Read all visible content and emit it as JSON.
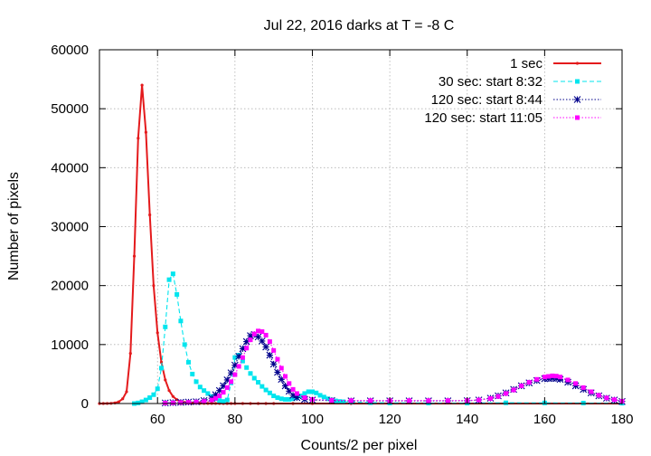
{
  "chart_data": {
    "type": "line",
    "title": "Jul 22, 2016 darks at T = -8 C",
    "xlabel": "Counts/2 per pixel",
    "ylabel": "Number of pixels",
    "xlim": [
      45,
      180
    ],
    "ylim": [
      0,
      60000
    ],
    "xticks": [
      60,
      80,
      100,
      120,
      140,
      160,
      180
    ],
    "yticks": [
      0,
      10000,
      20000,
      30000,
      40000,
      50000,
      60000
    ],
    "grid": true,
    "legend_position": "top-right",
    "series": [
      {
        "name": "1 sec",
        "color": "#e41a1c",
        "marker": "dot",
        "dash": "solid",
        "x": [
          45,
          46,
          47,
          48,
          49,
          50,
          51,
          52,
          53,
          54,
          55,
          56,
          57,
          58,
          59,
          60,
          61,
          62,
          63,
          64,
          65,
          66,
          67,
          68,
          69,
          70,
          71,
          72,
          73,
          74,
          75,
          76,
          77,
          78,
          79,
          80,
          82,
          84,
          86,
          88,
          90,
          95,
          100,
          110,
          120,
          130,
          140,
          150,
          160,
          170,
          180
        ],
        "y": [
          0,
          0,
          10,
          30,
          100,
          300,
          800,
          2000,
          8500,
          25000,
          45000,
          54000,
          46000,
          32000,
          20000,
          12000,
          7000,
          4000,
          2200,
          1200,
          650,
          350,
          200,
          120,
          80,
          50,
          35,
          25,
          20,
          15,
          12,
          10,
          8,
          6,
          5,
          4,
          3,
          2,
          2,
          1,
          1,
          0,
          0,
          0,
          0,
          0,
          0,
          0,
          0,
          0,
          0
        ]
      },
      {
        "name": "30 sec: start 8:32",
        "color": "#00e5ee",
        "marker": "square",
        "dash": "dash",
        "x": [
          54,
          55,
          56,
          57,
          58,
          59,
          60,
          61,
          62,
          63,
          64,
          65,
          66,
          67,
          68,
          69,
          70,
          71,
          72,
          73,
          74,
          75,
          76,
          77,
          78,
          79,
          80,
          81,
          82,
          83,
          84,
          85,
          86,
          87,
          88,
          89,
          90,
          91,
          92,
          93,
          94,
          95,
          96,
          97,
          98,
          99,
          100,
          101,
          102,
          103,
          104,
          105,
          106,
          107,
          108,
          110,
          115,
          120,
          130,
          140,
          150,
          160,
          170,
          180
        ],
        "y": [
          0,
          100,
          300,
          600,
          1000,
          1500,
          2500,
          6000,
          13000,
          21000,
          22000,
          18500,
          14000,
          10000,
          7000,
          5000,
          3700,
          2800,
          2200,
          1700,
          1200,
          800,
          500,
          350,
          600,
          3500,
          7800,
          8200,
          7200,
          6100,
          5100,
          4300,
          3600,
          2900,
          2300,
          1800,
          1300,
          1000,
          800,
          700,
          700,
          800,
          1000,
          1300,
          1700,
          2000,
          2000,
          1800,
          1400,
          1100,
          800,
          600,
          450,
          350,
          300,
          250,
          150,
          100,
          80,
          80,
          120,
          100,
          80,
          60
        ]
      },
      {
        "name": "120 sec: start 8:44",
        "color": "#00008b",
        "marker": "star",
        "dash": "dot",
        "x": [
          62,
          64,
          66,
          68,
          70,
          72,
          74,
          75,
          76,
          77,
          78,
          79,
          80,
          81,
          82,
          83,
          84,
          85,
          86,
          87,
          88,
          89,
          90,
          91,
          92,
          93,
          94,
          95,
          96,
          98,
          100,
          105,
          110,
          115,
          120,
          125,
          130,
          135,
          140,
          143,
          146,
          148,
          150,
          152,
          154,
          156,
          158,
          160,
          161,
          162,
          163,
          164,
          166,
          168,
          170,
          172,
          174,
          176,
          178,
          180
        ],
        "y": [
          100,
          150,
          200,
          250,
          300,
          500,
          900,
          1500,
          2200,
          3000,
          4000,
          5200,
          6500,
          8000,
          9300,
          10500,
          11500,
          11700,
          11300,
          10600,
          9600,
          8200,
          6700,
          5300,
          4100,
          3000,
          2100,
          1400,
          1000,
          700,
          600,
          500,
          450,
          450,
          450,
          450,
          450,
          450,
          480,
          600,
          900,
          1300,
          1800,
          2400,
          3000,
          3500,
          3900,
          4200,
          4250,
          4300,
          4250,
          4100,
          3600,
          3000,
          2400,
          1800,
          1300,
          900,
          600,
          350
        ]
      },
      {
        "name": "120 sec: start 11:05",
        "color": "#ff00ff",
        "marker": "square",
        "dash": "dot",
        "x": [
          62,
          64,
          66,
          68,
          70,
          72,
          74,
          75,
          76,
          77,
          78,
          79,
          80,
          81,
          82,
          83,
          84,
          85,
          86,
          87,
          88,
          89,
          90,
          91,
          92,
          93,
          94,
          95,
          96,
          98,
          100,
          105,
          110,
          115,
          120,
          125,
          130,
          135,
          140,
          143,
          146,
          148,
          150,
          152,
          154,
          156,
          158,
          160,
          161,
          162,
          163,
          164,
          166,
          168,
          170,
          172,
          174,
          176,
          178,
          180
        ],
        "y": [
          80,
          120,
          160,
          200,
          250,
          350,
          600,
          900,
          1300,
          1900,
          2700,
          3700,
          4900,
          6300,
          7800,
          9400,
          10800,
          11800,
          12300,
          12200,
          11600,
          10500,
          9000,
          7500,
          6000,
          4600,
          3400,
          2400,
          1700,
          1000,
          700,
          550,
          500,
          500,
          500,
          500,
          500,
          500,
          520,
          600,
          850,
          1200,
          1700,
          2300,
          3000,
          3600,
          4100,
          4500,
          4600,
          4700,
          4650,
          4500,
          4000,
          3400,
          2700,
          2000,
          1400,
          950,
          650,
          400
        ]
      }
    ]
  }
}
